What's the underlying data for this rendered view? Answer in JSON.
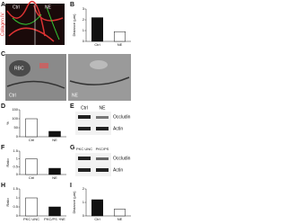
{
  "panel_labels": [
    "A",
    "B",
    "C",
    "D",
    "E",
    "F",
    "G",
    "H",
    "I"
  ],
  "panel_a": {
    "stain": "Collagen IV",
    "left": "Ctrl",
    "right": "NE"
  },
  "panel_c": {
    "cell": "RBC",
    "left": "Ctrl",
    "right": "NE"
  },
  "panel_e": {
    "lanes": [
      "Ctrl",
      "NE"
    ],
    "bands": [
      "Occludin",
      "Actin"
    ]
  },
  "panel_g": {
    "lanes": [
      "PKC UNC",
      "PKC/PS"
    ],
    "bands": [
      "Occludin",
      "Actin"
    ]
  },
  "chart_data": [
    {
      "type": "bar",
      "y_label": "Distance (μm)",
      "categories": [
        "Ctrl",
        "NE"
      ],
      "values": [
        2.2,
        0.9
      ],
      "colors": [
        "#111111",
        "#ffffff"
      ],
      "ylim": [
        0,
        3
      ],
      "yticks": [
        0,
        1,
        2,
        3
      ]
    },
    {
      "type": "bar",
      "y_label": "%",
      "categories": [
        "Ctrl",
        "NE"
      ],
      "values": [
        100,
        30
      ],
      "colors": [
        "#ffffff",
        "#111111"
      ],
      "ylim": [
        0,
        150
      ],
      "yticks": [
        0,
        50,
        100,
        150
      ]
    },
    {
      "type": "bar",
      "y_label": "Ratio",
      "categories": [
        "Ctrl",
        "NE"
      ],
      "values": [
        1,
        0.4
      ],
      "colors": [
        "#ffffff",
        "#111111"
      ],
      "ylim": [
        0,
        1.5
      ],
      "yticks": [
        0,
        0.5,
        1,
        1.5
      ]
    },
    {
      "type": "bar",
      "y_label": "Ratio",
      "categories": [
        "PKC UNC",
        "PKC/PS +NE"
      ],
      "values": [
        1,
        0.5
      ],
      "colors": [
        "#ffffff",
        "#111111"
      ],
      "ylim": [
        0,
        1.5
      ],
      "yticks": [
        0,
        0.5,
        1,
        1.5
      ]
    },
    {
      "type": "bar",
      "y_label": "Distance (μm)",
      "categories": [
        "Ctrl",
        "NE"
      ],
      "values": [
        1.2,
        0.5
      ],
      "colors": [
        "#111111",
        "#ffffff"
      ],
      "ylim": [
        0,
        2
      ],
      "yticks": [
        0,
        1,
        2
      ]
    }
  ]
}
